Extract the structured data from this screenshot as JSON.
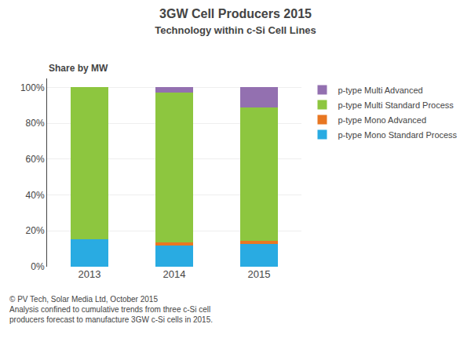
{
  "chart_data": {
    "type": "bar",
    "title": "3GW Cell Producers 2015",
    "subtitle": "Technology within c-Si Cell Lines",
    "ylabel": "Share by MW",
    "annotations": [
      "© PV Tech, Solar Media Ltd, October 2015",
      "Analysis confined to cumulative trends from three c-Si cell",
      "producers forecast to manufacture 3GW c-Si cells in 2015."
    ],
    "categories": [
      "2013",
      "2014",
      "2015"
    ],
    "series": [
      {
        "name": "p-type Mono Standard Process",
        "color": "#29ABE2",
        "values": [
          15.5,
          12.0,
          12.5
        ]
      },
      {
        "name": "p-type Mono Advanced",
        "color": "#E87722",
        "values": [
          0.0,
          1.5,
          2.0
        ]
      },
      {
        "name": "p-type Multi Standard Process",
        "color": "#8DC63F",
        "values": [
          84.5,
          83.5,
          74.5
        ]
      },
      {
        "name": "p-type Multi Advanced",
        "color": "#9370B0",
        "values": [
          0.0,
          3.0,
          11.0
        ]
      }
    ],
    "ylim": [
      0,
      105
    ],
    "yticks": [
      {
        "value": 0,
        "label": "0%"
      },
      {
        "value": 20,
        "label": "20%"
      },
      {
        "value": 40,
        "label": "40%"
      },
      {
        "value": 60,
        "label": "60%"
      },
      {
        "value": 80,
        "label": "80%"
      },
      {
        "value": 100,
        "label": "100%"
      }
    ],
    "stacked": true,
    "grid": true,
    "legend": "right"
  }
}
